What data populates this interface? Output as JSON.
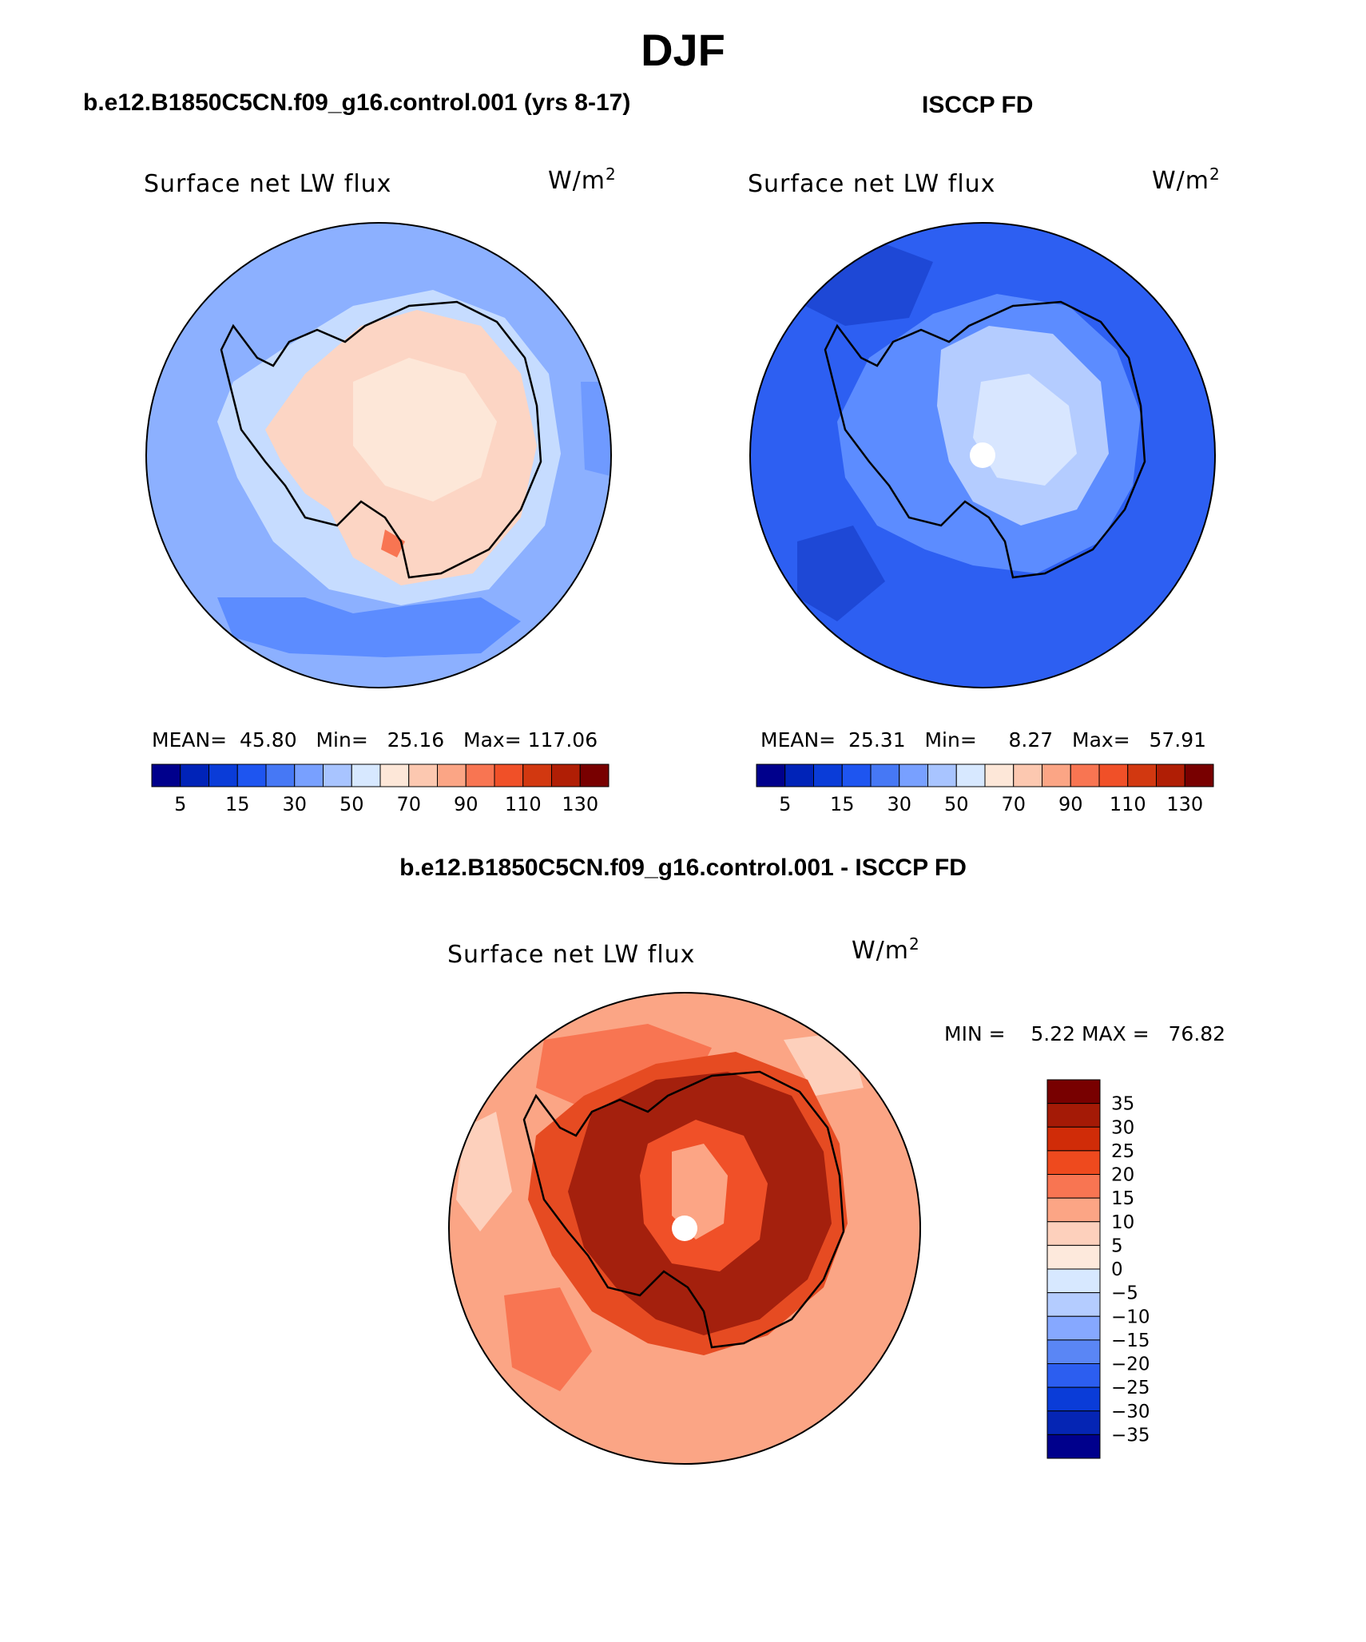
{
  "page": {
    "title": "DJF"
  },
  "colors": {
    "model_ocean": "#8cb0ff",
    "model_ice_edge": "#c6dcff",
    "model_land": "#fcd5c4",
    "obs_ocean": "#2d5ff2",
    "obs_mid": "#5c8cff",
    "obs_inland": "#b4ccff",
    "obs_center": "#d8e6ff",
    "diff_ocean": "#fba585",
    "diff_coast": "#a4200d",
    "diff_inner": "#e64b22"
  },
  "panels": {
    "model": {
      "title": "b.e12.B1850C5CN.f09_g16.control.001 (yrs 8-17)",
      "variable": "Surface net LW flux",
      "units_base": "W/m",
      "units_exp": "2",
      "mean_label": "MEAN=",
      "mean_value": "45.80",
      "min_label": "Min=",
      "min_value": "25.16",
      "max_label": "Max=",
      "max_value": "117.06"
    },
    "obs": {
      "title": "ISCCP FD",
      "variable": "Surface net LW flux",
      "units_base": "W/m",
      "units_exp": "2",
      "mean_label": "MEAN=",
      "mean_value": "25.31",
      "min_label": "Min=",
      "min_value": "8.27",
      "max_label": "Max=",
      "max_value": "57.91"
    },
    "diff": {
      "title": "b.e12.B1850C5CN.f09_g16.control.001 - ISCCP FD",
      "variable": "Surface net LW flux",
      "units_base": "W/m",
      "units_exp": "2",
      "min_label": "MIN =",
      "min_value": "5.22",
      "max_label": "MAX =",
      "max_value": "76.82"
    }
  },
  "colorbar_abs": {
    "colors": [
      "#00008c",
      "#0023b8",
      "#0a3cd8",
      "#1e55f0",
      "#4678f5",
      "#78a0ff",
      "#a8c4ff",
      "#d7e8ff",
      "#fde7d8",
      "#fcc8b0",
      "#fba585",
      "#f87552",
      "#f05028",
      "#d23810",
      "#b01e05",
      "#780000"
    ],
    "tick_labels": [
      "5",
      "15",
      "30",
      "50",
      "70",
      "90",
      "110",
      "130"
    ]
  },
  "colorbar_diff": {
    "colors": [
      "#780000",
      "#a41a06",
      "#d02c08",
      "#ee4a1e",
      "#f87552",
      "#fca585",
      "#fdd0bc",
      "#fde9dc",
      "#d7e8ff",
      "#b4ccff",
      "#86a8ff",
      "#5a86f5",
      "#2c5ef0",
      "#0a3cd8",
      "#0525b4",
      "#00008c"
    ],
    "tick_labels": [
      "35",
      "30",
      "25",
      "20",
      "15",
      "10",
      "5",
      "0",
      "−5",
      "−10",
      "−15",
      "−20",
      "−25",
      "−30",
      "−35"
    ]
  }
}
